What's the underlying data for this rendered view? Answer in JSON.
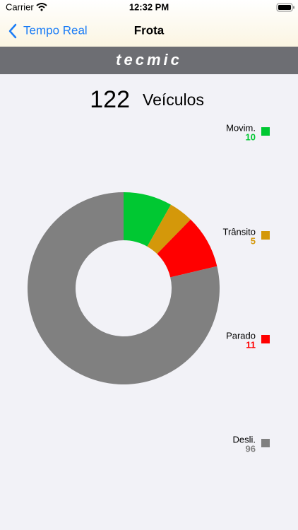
{
  "status_bar": {
    "carrier": "Carrier",
    "time": "12:32 PM"
  },
  "nav": {
    "back": "Tempo Real",
    "title": "Frota"
  },
  "logo": "tecmic",
  "total": {
    "value": 122,
    "label": "Veículos"
  },
  "chart_data": {
    "type": "donut",
    "categories": [
      "Movim.",
      "Trânsito",
      "Parado",
      "Desli."
    ],
    "values": [
      10,
      5,
      11,
      96
    ],
    "colors": [
      "#00c832",
      "#d4980a",
      "#ff0000",
      "#808080"
    ]
  }
}
